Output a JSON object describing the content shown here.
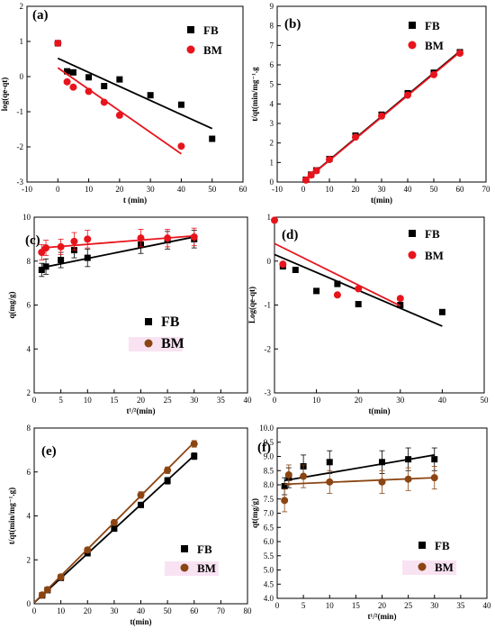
{
  "chart_data": [
    {
      "id": "a",
      "tag": "(a)",
      "type": "scatter",
      "xlabel": "t (min)",
      "ylabel": "log(qe-qt)",
      "xlim": [
        -10,
        60
      ],
      "ylim": [
        -3,
        2
      ],
      "xticks": [
        -10,
        0,
        10,
        20,
        30,
        40,
        50,
        60
      ],
      "yticks": [
        -3,
        -2,
        -1,
        0,
        1,
        2
      ],
      "legend": "top-right",
      "series": [
        {
          "name": "FB",
          "color": "#000000",
          "marker": "square",
          "x": [
            0,
            3,
            5,
            10,
            15,
            20,
            30,
            40,
            50
          ],
          "y": [
            0.95,
            0.15,
            0.12,
            -0.02,
            -0.27,
            -0.08,
            -0.53,
            -0.8,
            -1.77
          ],
          "fit": [
            [
              0,
              0.52
            ],
            [
              50,
              -1.48
            ]
          ]
        },
        {
          "name": "BM",
          "color": "#e8141c",
          "marker": "circle",
          "x": [
            0,
            3,
            5,
            10,
            15,
            20,
            40
          ],
          "y": [
            0.95,
            -0.15,
            -0.3,
            -0.42,
            -0.73,
            -1.1,
            -1.98
          ],
          "fit": [
            [
              0,
              0.25
            ],
            [
              40,
              -2.2
            ]
          ]
        }
      ]
    },
    {
      "id": "b",
      "tag": "(b)",
      "type": "scatter",
      "xlabel": "t(min)",
      "ylabel": "t/qt(min/mg⁻¹.g",
      "xlim": [
        -10,
        70
      ],
      "ylim": [
        0,
        9
      ],
      "xticks": [
        -10,
        0,
        10,
        20,
        30,
        40,
        50,
        60,
        70
      ],
      "yticks": [
        0,
        1,
        2,
        3,
        4,
        5,
        6,
        7,
        8,
        9
      ],
      "legend": "top-right",
      "series": [
        {
          "name": "FB",
          "color": "#000000",
          "marker": "square",
          "x": [
            1,
            3,
            5,
            10,
            20,
            30,
            40,
            50,
            60
          ],
          "y": [
            0.12,
            0.38,
            0.6,
            1.18,
            2.38,
            3.45,
            4.55,
            5.6,
            6.65
          ],
          "fit": [
            [
              0,
              0.02
            ],
            [
              60,
              6.7
            ]
          ]
        },
        {
          "name": "BM",
          "color": "#e8141c",
          "marker": "circle",
          "x": [
            1,
            3,
            5,
            10,
            20,
            30,
            40,
            50,
            60
          ],
          "y": [
            0.1,
            0.36,
            0.58,
            1.15,
            2.3,
            3.38,
            4.45,
            5.5,
            6.6
          ],
          "fit": [
            [
              0,
              0.0
            ],
            [
              60,
              6.65
            ]
          ]
        }
      ]
    },
    {
      "id": "c",
      "tag": "(c)",
      "type": "scatter",
      "xlabel": "t¹/²(min)",
      "ylabel": "q(mg/g)",
      "xlim": [
        0,
        40
      ],
      "ylim": [
        2,
        10
      ],
      "xticks": [
        0,
        5,
        10,
        15,
        20,
        25,
        30,
        35,
        40
      ],
      "yticks": [
        2,
        4,
        6,
        8,
        10
      ],
      "legend": "center-right",
      "series": [
        {
          "name": "FB",
          "color": "#000000",
          "marker": "square",
          "x": [
            1.4,
            2.2,
            5,
            7.5,
            10,
            20,
            25,
            30
          ],
          "y": [
            7.6,
            7.75,
            8.05,
            8.5,
            8.15,
            8.75,
            8.95,
            9.0
          ],
          "err": [
            0.3,
            0.35,
            0.35,
            0.35,
            0.4,
            0.4,
            0.4,
            0.4
          ],
          "fit": [
            [
              1.4,
              7.7
            ],
            [
              30,
              9.1
            ]
          ]
        },
        {
          "name": "BM",
          "color": "#e8141c",
          "legend_color": "#8b4513",
          "marker": "circle",
          "x": [
            1.4,
            2.2,
            5,
            7.5,
            10,
            20,
            25,
            30
          ],
          "y": [
            8.4,
            8.6,
            8.65,
            8.9,
            9.0,
            9.05,
            9.05,
            9.1
          ],
          "err": [
            0.35,
            0.35,
            0.35,
            0.4,
            0.4,
            0.4,
            0.4,
            0.4
          ],
          "fit": [
            [
              1.4,
              8.6
            ],
            [
              30,
              9.15
            ]
          ]
        }
      ]
    },
    {
      "id": "d",
      "tag": "(d)",
      "type": "scatter",
      "xlabel": "t(min)",
      "ylabel": "Log(qe-qt)",
      "xlim": [
        0,
        50
      ],
      "ylim": [
        -3,
        1
      ],
      "xticks": [
        0,
        10,
        20,
        30,
        40,
        50
      ],
      "yticks": [
        -3,
        -2,
        -1,
        0,
        1
      ],
      "legend": "top-right",
      "series": [
        {
          "name": "FB",
          "color": "#000000",
          "marker": "square",
          "x": [
            2,
            5,
            10,
            15,
            20,
            30,
            40
          ],
          "y": [
            -0.12,
            -0.2,
            -0.68,
            -0.52,
            -0.98,
            -1.0,
            -1.16
          ],
          "fit": [
            [
              0,
              0.15
            ],
            [
              40,
              -1.48
            ]
          ]
        },
        {
          "name": "BM",
          "color": "#e8141c",
          "marker": "circle",
          "x": [
            0,
            2,
            15,
            20,
            30
          ],
          "y": [
            0.93,
            -0.07,
            -0.77,
            -0.63,
            -0.85
          ],
          "fit": [
            [
              0,
              0.4
            ],
            [
              30,
              -1.02
            ]
          ]
        }
      ]
    },
    {
      "id": "e",
      "tag": "(e)",
      "type": "scatter",
      "xlabel": "t(min)",
      "ylabel": "t/qt(min/mg⁻¹.g)",
      "xlim": [
        0,
        80
      ],
      "ylim": [
        0,
        8
      ],
      "xticks": [
        0,
        10,
        20,
        30,
        40,
        50,
        60,
        70,
        80
      ],
      "yticks": [
        0,
        2,
        4,
        6,
        8
      ],
      "legend": "bottom-right",
      "series": [
        {
          "name": "FB",
          "color": "#000000",
          "marker": "square",
          "x": [
            3,
            5,
            10,
            20,
            30,
            40,
            50,
            60
          ],
          "y": [
            0.38,
            0.62,
            1.18,
            2.3,
            3.42,
            4.5,
            5.6,
            6.72
          ],
          "err": [
            0.12,
            0.12,
            0.12,
            0.12,
            0.12,
            0.12,
            0.15,
            0.15
          ],
          "fit": [
            [
              0,
              0.05
            ],
            [
              60,
              6.75
            ]
          ]
        },
        {
          "name": "BM",
          "color": "#8b4513",
          "marker": "circle",
          "x": [
            3,
            5,
            10,
            20,
            30,
            40,
            50,
            60
          ],
          "y": [
            0.4,
            0.64,
            1.22,
            2.45,
            3.7,
            4.95,
            6.08,
            7.28
          ],
          "err": [
            0.12,
            0.12,
            0.12,
            0.12,
            0.12,
            0.15,
            0.15,
            0.15
          ],
          "fit": [
            [
              0,
              0.05
            ],
            [
              60,
              7.35
            ]
          ]
        }
      ]
    },
    {
      "id": "f",
      "tag": "(f)",
      "type": "scatter",
      "xlabel": "t¹/²(min)",
      "ylabel": "qt(mg/g)",
      "xlim": [
        0,
        40
      ],
      "ylim": [
        4,
        10
      ],
      "xticks": [
        0,
        5,
        10,
        15,
        20,
        25,
        30,
        35,
        40
      ],
      "yticks": [
        4.0,
        4.5,
        5.0,
        5.5,
        6.0,
        6.5,
        7.0,
        7.5,
        8.0,
        8.5,
        9.0,
        9.5,
        10.0
      ],
      "legend": "bottom-right",
      "series": [
        {
          "name": "FB",
          "color": "#000000",
          "marker": "square",
          "x": [
            1.4,
            2.2,
            5,
            10,
            20,
            25,
            30
          ],
          "y": [
            7.95,
            8.25,
            8.65,
            8.8,
            8.8,
            8.9,
            8.9
          ],
          "err": [
            0.3,
            0.35,
            0.4,
            0.4,
            0.4,
            0.4,
            0.4
          ],
          "fit": [
            [
              1.4,
              8.15
            ],
            [
              30,
              9.05
            ]
          ]
        },
        {
          "name": "BM",
          "color": "#8b4513",
          "marker": "circle",
          "x": [
            1.4,
            2.2,
            5,
            10,
            20,
            25,
            30
          ],
          "y": [
            7.45,
            8.35,
            8.3,
            8.1,
            8.1,
            8.2,
            8.25
          ],
          "err": [
            0.4,
            0.35,
            0.4,
            0.4,
            0.4,
            0.4,
            0.4
          ],
          "fit": [
            [
              1.4,
              8.02
            ],
            [
              30,
              8.25
            ]
          ]
        }
      ]
    }
  ]
}
